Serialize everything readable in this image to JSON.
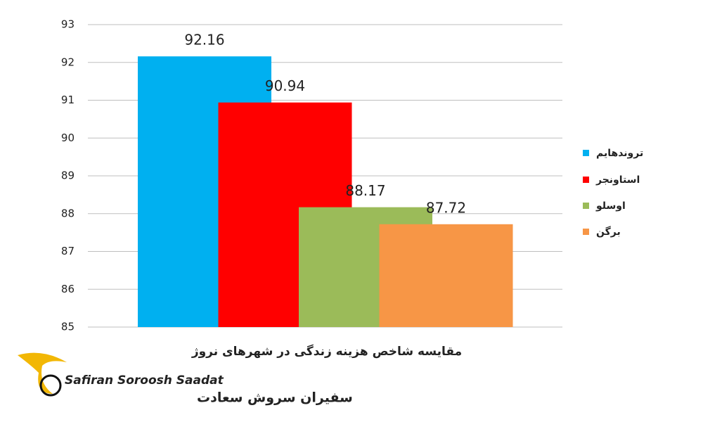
{
  "chart_data": {
    "type": "bar",
    "x_label": "مقایسه شاخص هزینه زندگی در شهرهای نروژ",
    "categories": [
      null
    ],
    "series": [
      {
        "name": "تروندهایم",
        "color": "#00b0f0",
        "values": [
          92.16
        ]
      },
      {
        "name": "استاونجر",
        "color": "#ff0000",
        "values": [
          90.94
        ]
      },
      {
        "name": "اوسلو",
        "color": "#9bbb59",
        "values": [
          88.17
        ]
      },
      {
        "name": "برگن",
        "color": "#f79646",
        "values": [
          87.72
        ]
      }
    ],
    "ylim": [
      85,
      93
    ],
    "yticks": [
      85,
      86,
      87,
      88,
      89,
      90,
      91,
      92,
      93
    ],
    "grid": true,
    "legend": "right"
  },
  "logo": {
    "name_en": "Safiran Soroosh Saadat",
    "name_fa": "سفیران سروش سعادت"
  }
}
